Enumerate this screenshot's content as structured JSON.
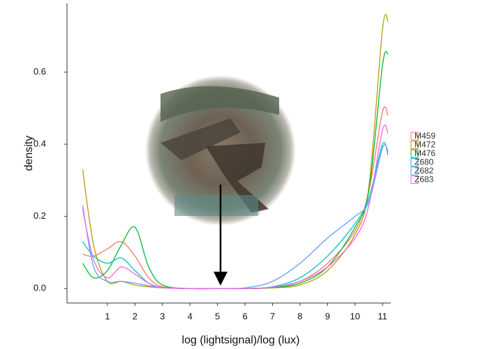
{
  "chart_data": {
    "type": "line",
    "x_label": "log (lightsignal)/log (lux)",
    "y_label": "density",
    "x": [
      0.1,
      0.5,
      1,
      1.5,
      2,
      2.5,
      3,
      4,
      5,
      6,
      7,
      8,
      9,
      10,
      10.5,
      11,
      11.2
    ],
    "series": [
      {
        "name": "M459",
        "color": "#F8766D",
        "values": [
          0.095,
          0.09,
          0.11,
          0.13,
          0.09,
          0.03,
          0.005,
          0,
          0,
          0,
          0.003,
          0.02,
          0.07,
          0.16,
          0.27,
          0.49,
          0.48
        ]
      },
      {
        "name": "M472",
        "color": "#B79F00",
        "values": [
          0.33,
          0.12,
          0.02,
          0.02,
          0.01,
          0.005,
          0.002,
          0,
          0,
          0,
          0.002,
          0.01,
          0.05,
          0.15,
          0.28,
          0.72,
          0.74
        ]
      },
      {
        "name": "M476",
        "color": "#00BA38",
        "values": [
          0.07,
          0.03,
          0.05,
          0.12,
          0.17,
          0.06,
          0.01,
          0,
          0,
          0,
          0.003,
          0.015,
          0.06,
          0.17,
          0.27,
          0.62,
          0.65
        ]
      },
      {
        "name": "Z680",
        "color": "#00BFC4",
        "values": [
          0.13,
          0.09,
          0.07,
          0.085,
          0.05,
          0.015,
          0.003,
          0,
          0,
          0,
          0.005,
          0.03,
          0.09,
          0.18,
          0.25,
          0.4,
          0.37
        ]
      },
      {
        "name": "Z682",
        "color": "#619CFF",
        "values": [
          0.23,
          0.06,
          0.02,
          0.02,
          0.015,
          0.008,
          0.003,
          0,
          0,
          0.002,
          0.02,
          0.07,
          0.14,
          0.2,
          0.24,
          0.39,
          0.38
        ]
      },
      {
        "name": "Z683",
        "color": "#F564E3",
        "values": [
          0.22,
          0.08,
          0.03,
          0.06,
          0.04,
          0.015,
          0.003,
          0,
          0,
          0,
          0.004,
          0.02,
          0.06,
          0.14,
          0.23,
          0.44,
          0.43
        ]
      }
    ],
    "xlim": [
      -0.47,
      11.3
    ],
    "ylim": [
      -0.04,
      0.79
    ],
    "xticks": [
      1,
      2,
      3,
      4,
      5,
      6,
      7,
      8,
      9,
      10,
      11
    ],
    "yticks": [
      {
        "value": 0,
        "label": "0.0"
      },
      0.2,
      0.4,
      0.6
    ],
    "grid": false,
    "legend": "right"
  }
}
